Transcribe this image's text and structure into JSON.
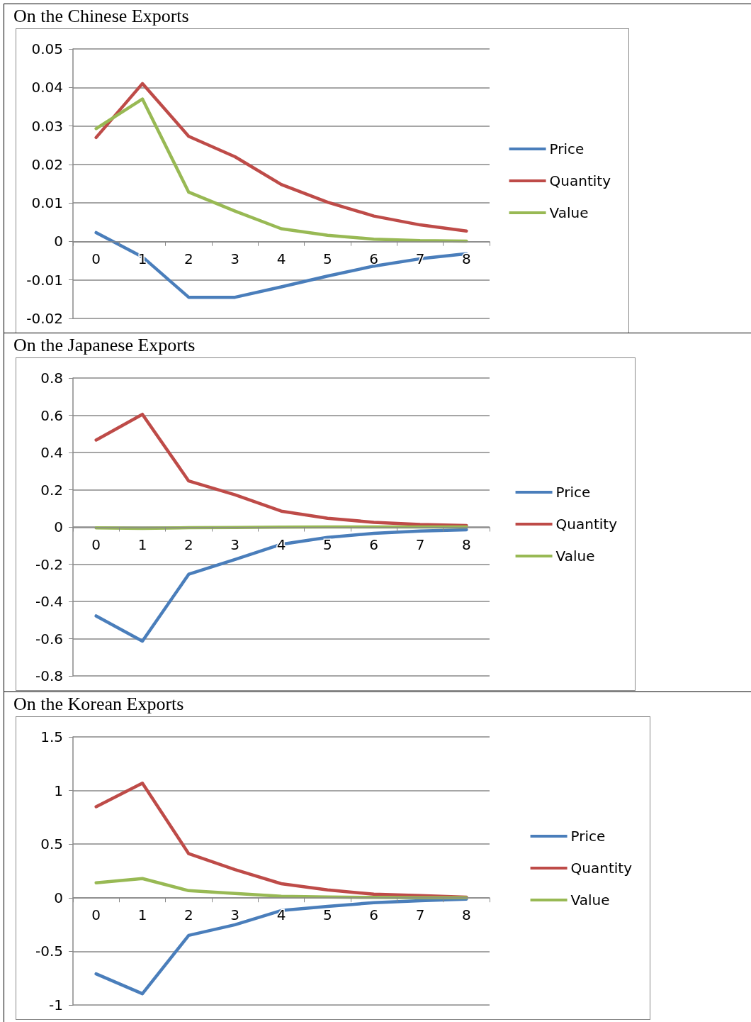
{
  "chart_data": [
    {
      "type": "line",
      "title": "On the Chinese Exports",
      "categories": [
        "0",
        "1",
        "2",
        "3",
        "4",
        "5",
        "6",
        "7",
        "8"
      ],
      "ylim": [
        -0.02,
        0.05
      ],
      "yticks": [
        -0.02,
        -0.01,
        0,
        0.01,
        0.02,
        0.03,
        0.04,
        0.05
      ],
      "grid": "y",
      "legend": "right",
      "marker": "none",
      "line_style": "solid",
      "series": [
        {
          "name": "Price",
          "color": "#4a7ebb",
          "values": [
            0.0023,
            -0.004,
            -0.0145,
            -0.0145,
            -0.0118,
            -0.009,
            -0.0064,
            -0.0045,
            -0.0032
          ]
        },
        {
          "name": "Quantity",
          "color": "#be4b48",
          "values": [
            0.027,
            0.041,
            0.0273,
            0.022,
            0.0148,
            0.0102,
            0.0066,
            0.0043,
            0.0027
          ]
        },
        {
          "name": "Value",
          "color": "#98b954",
          "values": [
            0.0293,
            0.037,
            0.0128,
            0.0079,
            0.0033,
            0.0016,
            0.0006,
            0.0002,
            0.0001
          ]
        }
      ]
    },
    {
      "type": "line",
      "title": "On the Japanese Exports",
      "categories": [
        "0",
        "1",
        "2",
        "3",
        "4",
        "5",
        "6",
        "7",
        "8"
      ],
      "ylim": [
        -0.8,
        0.8
      ],
      "yticks": [
        -0.8,
        -0.6,
        -0.4,
        -0.2,
        0,
        0.2,
        0.4,
        0.6,
        0.8
      ],
      "grid": "y",
      "legend": "right",
      "marker": "none",
      "line_style": "solid",
      "series": [
        {
          "name": "Price",
          "color": "#4a7ebb",
          "values": [
            -0.478,
            -0.613,
            -0.254,
            -0.175,
            -0.093,
            -0.056,
            -0.034,
            -0.022,
            -0.015
          ]
        },
        {
          "name": "Quantity",
          "color": "#be4b48",
          "values": [
            0.467,
            0.605,
            0.247,
            0.173,
            0.085,
            0.047,
            0.025,
            0.013,
            0.008
          ]
        },
        {
          "name": "Value",
          "color": "#98b954",
          "values": [
            -0.005,
            -0.008,
            -0.004,
            -0.003,
            -0.001,
            0,
            0,
            0,
            0
          ]
        }
      ]
    },
    {
      "type": "line",
      "title": "On the Korean Exports",
      "categories": [
        "0",
        "1",
        "2",
        "3",
        "4",
        "5",
        "6",
        "7",
        "8"
      ],
      "ylim": [
        -1,
        1.5
      ],
      "yticks": [
        -1,
        -0.5,
        0,
        0.5,
        1,
        1.5
      ],
      "grid": "y",
      "legend": "right",
      "marker": "none",
      "line_style": "solid",
      "series": [
        {
          "name": "Price",
          "color": "#4a7ebb",
          "values": [
            -0.71,
            -0.895,
            -0.351,
            -0.252,
            -0.119,
            -0.08,
            -0.046,
            -0.027,
            -0.013
          ]
        },
        {
          "name": "Quantity",
          "color": "#be4b48",
          "values": [
            0.849,
            1.068,
            0.411,
            0.263,
            0.131,
            0.073,
            0.033,
            0.02,
            0.005
          ]
        },
        {
          "name": "Value",
          "color": "#98b954",
          "values": [
            0.139,
            0.179,
            0.066,
            0.04,
            0.013,
            0.007,
            0.003,
            0.001,
            0
          ]
        }
      ]
    }
  ]
}
